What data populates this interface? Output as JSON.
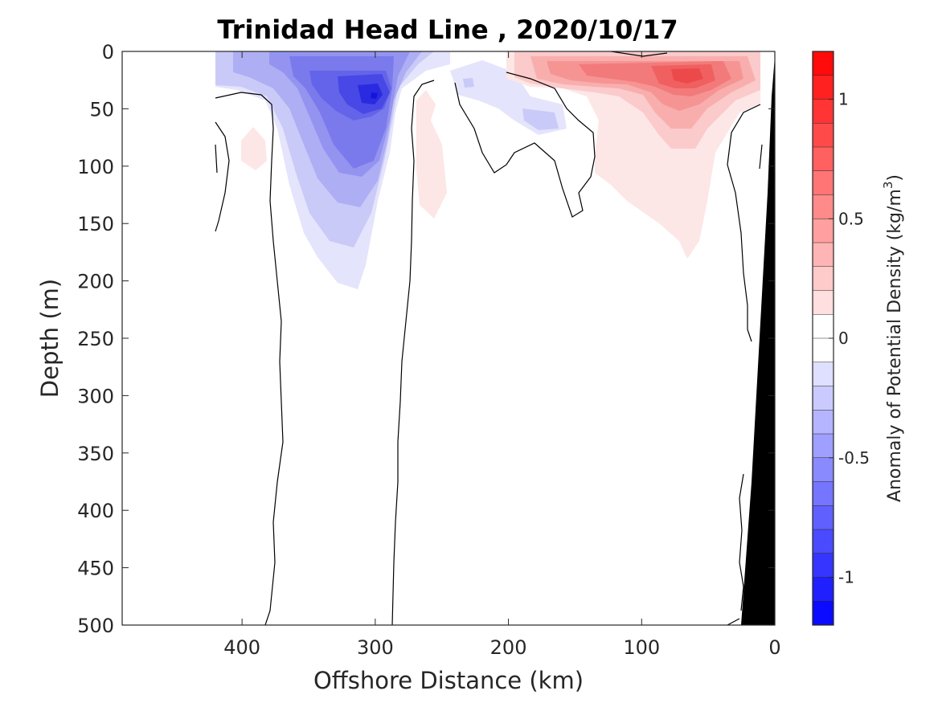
{
  "chart_data": {
    "type": "contour",
    "title": "Trinidad Head Line , 2020/10/17",
    "xlabel": "Offshore Distance (km)",
    "ylabel": "Depth (m)",
    "colorbar_label": "Anomaly of Potential Density (kg/m³)",
    "colorbar_label_base": "Anomaly of Potential Density (kg/m",
    "colorbar_label_sup": "3",
    "colorbar_label_end": ")",
    "x_direction": "reversed",
    "xlim": [
      490,
      0
    ],
    "ylim": [
      0,
      500
    ],
    "y_direction": "reversed",
    "xticks": [
      "400",
      "300",
      "200",
      "100",
      "0"
    ],
    "xtick_values": [
      400,
      300,
      200,
      100,
      0
    ],
    "yticks": [
      "0",
      "50",
      "100",
      "150",
      "200",
      "250",
      "300",
      "350",
      "400",
      "450",
      "500"
    ],
    "ytick_values": [
      0,
      50,
      100,
      150,
      200,
      250,
      300,
      350,
      400,
      450,
      500
    ],
    "clim": [
      -1.2,
      1.2
    ],
    "colorbar_levels": 24,
    "colorbar_ticks": [
      "-1",
      "-0.5",
      "0",
      "0.5",
      "1"
    ],
    "colorbar_tick_values": [
      -1,
      -0.5,
      0,
      0.5,
      1
    ],
    "colormap": "blue-white-red",
    "colors": {
      "negative": "#0000ff",
      "zero": "#ffffff",
      "positive": "#ff0000",
      "bathymetry": "#000000"
    },
    "features": [
      {
        "name": "negative anomaly core",
        "x": 300,
        "depth": 38,
        "value": -0.95
      },
      {
        "name": "positive anomaly core",
        "x": 70,
        "depth": 22,
        "value": 0.65
      },
      {
        "name": "secondary positive anomaly",
        "x": 130,
        "depth": 20,
        "value": 0.45
      }
    ],
    "grid": false,
    "legend": "colorbar right"
  }
}
